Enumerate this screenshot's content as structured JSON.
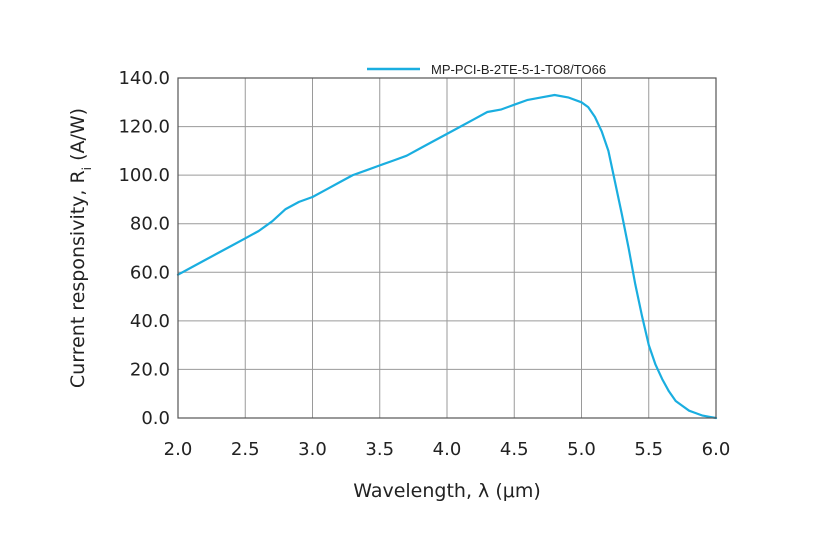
{
  "chart_data": {
    "type": "line",
    "title": "",
    "xlabel": "Wavelength, λ (μm)",
    "ylabel_main": "Current responsivity, R",
    "ylabel_sub": "i",
    "ylabel_unit": " (A/W)",
    "xlim": [
      2.0,
      6.0
    ],
    "ylim": [
      0.0,
      140.0
    ],
    "x_ticks": [
      "2.0",
      "2.5",
      "3.0",
      "3.5",
      "4.0",
      "4.5",
      "5.0",
      "5.5",
      "6.0"
    ],
    "y_ticks": [
      "0.0",
      "20.0",
      "40.0",
      "60.0",
      "80.0",
      "100.0",
      "120.0",
      "140.0"
    ],
    "grid": true,
    "legend_position": "top-right",
    "line_color": "#1aaee0",
    "series": [
      {
        "name": "MP-PCI-B-2TE-5-1-TO8/TO66",
        "x": [
          2.0,
          2.1,
          2.2,
          2.3,
          2.4,
          2.5,
          2.6,
          2.7,
          2.8,
          2.9,
          3.0,
          3.1,
          3.2,
          3.3,
          3.4,
          3.5,
          3.6,
          3.7,
          3.8,
          3.9,
          4.0,
          4.1,
          4.2,
          4.3,
          4.4,
          4.5,
          4.6,
          4.7,
          4.8,
          4.9,
          5.0,
          5.05,
          5.1,
          5.15,
          5.2,
          5.25,
          5.3,
          5.35,
          5.4,
          5.45,
          5.5,
          5.55,
          5.6,
          5.65,
          5.7,
          5.75,
          5.8,
          5.85,
          5.9,
          5.95,
          6.0
        ],
        "y": [
          59,
          62,
          65,
          68,
          71,
          74,
          77,
          81,
          86,
          89,
          91,
          94,
          97,
          100,
          102,
          104,
          106,
          108,
          111,
          114,
          117,
          120,
          123,
          126,
          127,
          129,
          131,
          132,
          133,
          132,
          130,
          128,
          124,
          118,
          110,
          97,
          84,
          70,
          55,
          42,
          30,
          22,
          16,
          11,
          7,
          5,
          3,
          2,
          1,
          0.5,
          0
        ]
      }
    ]
  }
}
